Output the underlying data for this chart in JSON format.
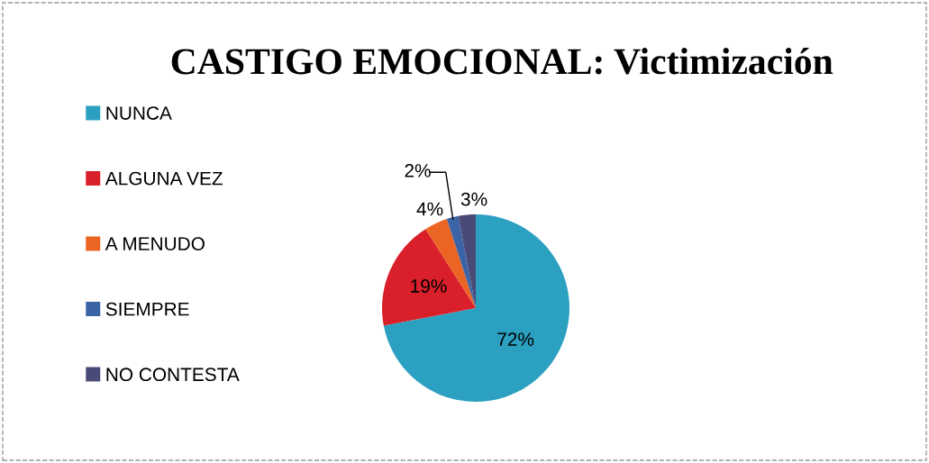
{
  "chart_data": {
    "type": "pie",
    "title": "CASTIGO EMOCIONAL: Victimización",
    "categories": [
      "NUNCA",
      "ALGUNA VEZ",
      "A MENUDO",
      "SIEMPRE",
      "NO CONTESTA"
    ],
    "values": [
      72,
      19,
      4,
      2,
      3
    ],
    "colors": [
      "#2ca0c0",
      "#d9202a",
      "#ec6424",
      "#3a64a6",
      "#4a4a78"
    ],
    "value_labels": [
      "72%",
      "19%",
      "4%",
      "2%",
      "3%"
    ],
    "legend": "left"
  }
}
